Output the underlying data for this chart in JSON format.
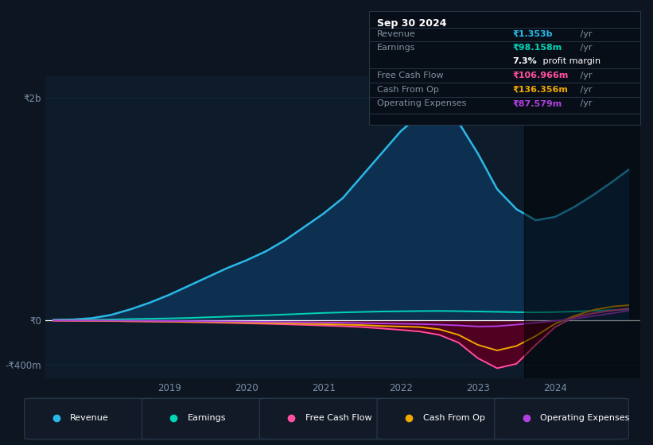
{
  "bg_color": "#0d1520",
  "plot_bg_color": "#0d1b2a",
  "grid_color": "#1a2a3a",
  "axis_label_color": "#7a8fa8",
  "zero_line_color": "#ffffff",
  "y_label_2b": "₹2b",
  "y_label_0": "₹0",
  "y_label_neg400m": "-₹400m",
  "ylim": [
    -520000000,
    2200000000
  ],
  "years": [
    2017.5,
    2017.75,
    2018.0,
    2018.25,
    2018.5,
    2018.75,
    2019.0,
    2019.25,
    2019.5,
    2019.75,
    2020.0,
    2020.25,
    2020.5,
    2020.75,
    2021.0,
    2021.25,
    2021.5,
    2021.75,
    2022.0,
    2022.25,
    2022.5,
    2022.75,
    2023.0,
    2023.25,
    2023.5,
    2023.75,
    2024.0,
    2024.25,
    2024.5,
    2024.75,
    2024.95
  ],
  "revenue": [
    5000000,
    8000000,
    20000000,
    50000000,
    100000000,
    160000000,
    230000000,
    310000000,
    390000000,
    470000000,
    540000000,
    620000000,
    720000000,
    840000000,
    960000000,
    1100000000,
    1300000000,
    1500000000,
    1700000000,
    1850000000,
    1920000000,
    1780000000,
    1500000000,
    1180000000,
    1000000000,
    900000000,
    930000000,
    1020000000,
    1130000000,
    1250000000,
    1353000000
  ],
  "earnings": [
    2000000,
    3000000,
    5000000,
    8000000,
    12000000,
    15000000,
    18000000,
    22000000,
    28000000,
    34000000,
    40000000,
    46000000,
    53000000,
    60000000,
    67000000,
    72000000,
    76000000,
    80000000,
    82000000,
    84000000,
    85000000,
    83000000,
    80000000,
    77000000,
    74000000,
    72000000,
    75000000,
    80000000,
    87000000,
    93000000,
    98158000
  ],
  "free_cash_flow": [
    -2000000,
    -3000000,
    -4000000,
    -6000000,
    -8000000,
    -10000000,
    -12000000,
    -15000000,
    -18000000,
    -22000000,
    -26000000,
    -30000000,
    -35000000,
    -40000000,
    -46000000,
    -52000000,
    -60000000,
    -72000000,
    -85000000,
    -100000000,
    -130000000,
    -200000000,
    -340000000,
    -430000000,
    -390000000,
    -220000000,
    -60000000,
    30000000,
    65000000,
    90000000,
    106966000
  ],
  "cash_from_op": [
    -1000000,
    -2000000,
    -3000000,
    -5000000,
    -7000000,
    -8000000,
    -10000000,
    -12000000,
    -14000000,
    -17000000,
    -20000000,
    -23000000,
    -26000000,
    -30000000,
    -34000000,
    -38000000,
    -42000000,
    -50000000,
    -55000000,
    -60000000,
    -80000000,
    -130000000,
    -220000000,
    -270000000,
    -230000000,
    -140000000,
    -30000000,
    40000000,
    95000000,
    125000000,
    136356000
  ],
  "operating_expenses": [
    -500000,
    -800000,
    -1200000,
    -2000000,
    -3000000,
    -4000000,
    -5000000,
    -6500000,
    -8000000,
    -9500000,
    -11000000,
    -13000000,
    -15000000,
    -17000000,
    -19000000,
    -21000000,
    -24000000,
    -27000000,
    -30000000,
    -33000000,
    -38000000,
    -45000000,
    -55000000,
    -52000000,
    -38000000,
    -20000000,
    -5000000,
    15000000,
    40000000,
    65000000,
    87579000
  ],
  "revenue_color": "#2ab8e8",
  "revenue_fill": "#0e3050",
  "earnings_color": "#00d4b8",
  "free_cash_flow_color": "#ff4fa0",
  "cash_from_op_color": "#f0a800",
  "operating_expenses_color": "#b040e0",
  "free_cash_flow_fill": "#500020",
  "tooltip_bg": "#080e18",
  "tooltip_border": "#253545",
  "tooltip_title": "Sep 30 2024",
  "tooltip_revenue_label": "Revenue",
  "tooltip_revenue_val": "₹1.353b",
  "tooltip_earnings_label": "Earnings",
  "tooltip_earnings_val": "₹98.158m",
  "tooltip_margin": "7.3%",
  "tooltip_margin_suffix": " profit margin",
  "tooltip_fcf_label": "Free Cash Flow",
  "tooltip_fcf_val": "₹106.966m",
  "tooltip_cashop_label": "Cash From Op",
  "tooltip_cashop_val": "₹136.356m",
  "tooltip_opex_label": "Operating Expenses",
  "tooltip_opex_val": "₹87.579m",
  "legend_labels": [
    "Revenue",
    "Earnings",
    "Free Cash Flow",
    "Cash From Op",
    "Operating Expenses"
  ],
  "legend_colors": [
    "#2ab8e8",
    "#00d4b8",
    "#ff4fa0",
    "#f0a800",
    "#b040e0"
  ],
  "xtick_labels": [
    "2019",
    "2020",
    "2021",
    "2022",
    "2023",
    "2024"
  ],
  "xtick_positions": [
    2019,
    2020,
    2021,
    2022,
    2023,
    2024
  ],
  "highlight_x_start": 2023.6,
  "highlight_x_end": 2025.1,
  "xlim_left": 2017.4,
  "xlim_right": 2025.1
}
